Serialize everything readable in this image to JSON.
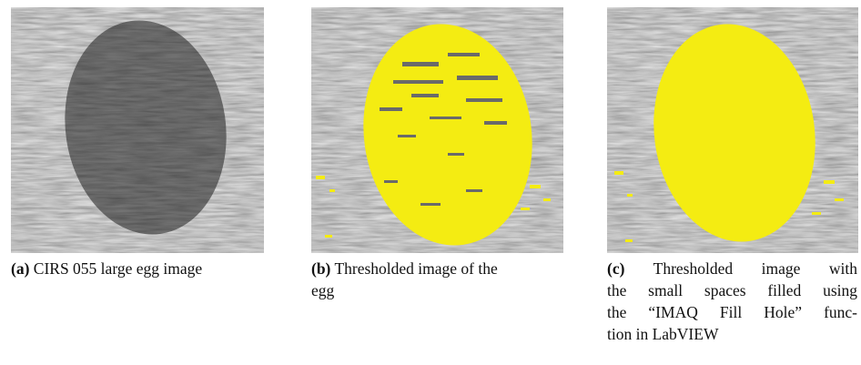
{
  "figures": [
    {
      "label": "(a)",
      "caption_lines": [
        "CIRS 055 large egg image"
      ]
    },
    {
      "label": "(b)",
      "caption_lines": [
        "Thresholded image of the",
        "egg"
      ]
    },
    {
      "label": "(c)",
      "caption_lines": [
        "Thresholded image with",
        "the small spaces filled using",
        "the “IMAQ Fill Hole” func-",
        "tion in LabVIEW"
      ]
    }
  ]
}
